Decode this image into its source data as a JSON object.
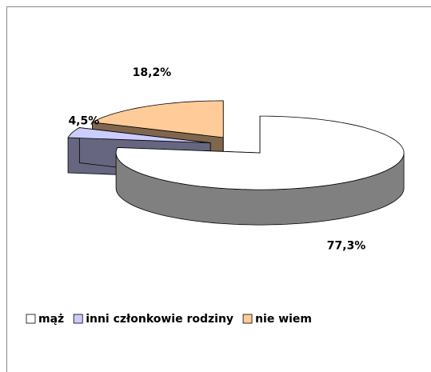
{
  "chart_data": {
    "type": "pie",
    "view": "3d-exploded",
    "categories": [
      "mąż",
      "inni członkowie rodziny",
      "nie wiem"
    ],
    "values": [
      77.3,
      4.5,
      18.2
    ],
    "value_labels": [
      "77,3%",
      "4,5%",
      "18,2%"
    ],
    "colors": [
      "#ffffff",
      "#ccccff",
      "#ffcc99"
    ],
    "legend": "bottom"
  }
}
